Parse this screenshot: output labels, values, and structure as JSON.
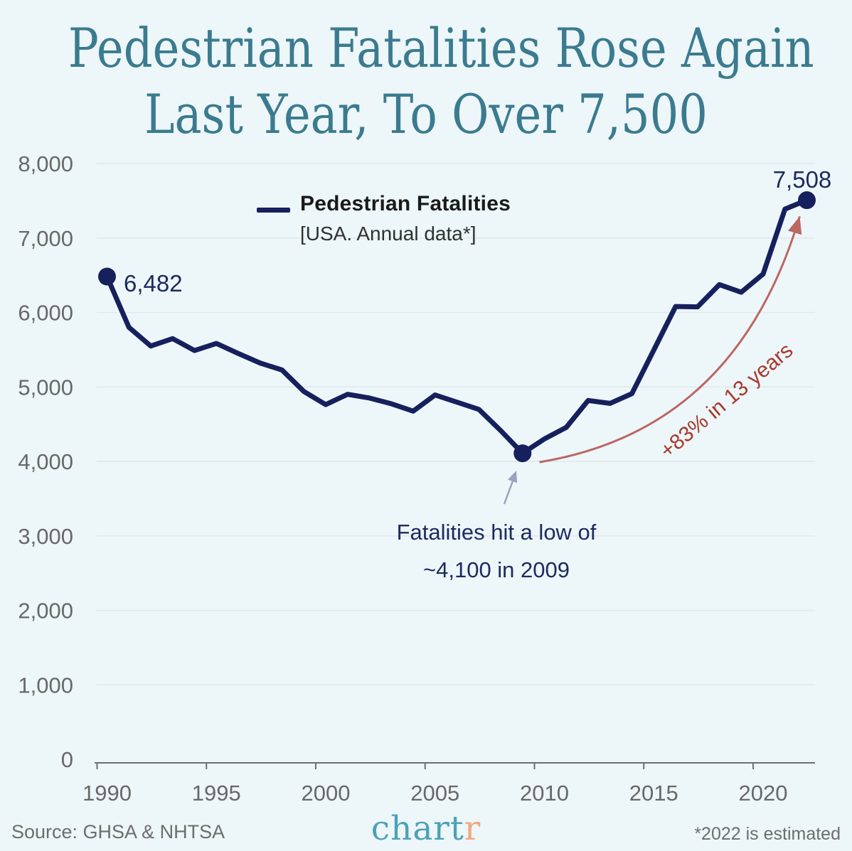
{
  "title": {
    "line1": "Pedestrian Fatalities Rose Again",
    "line2": "Last Year, To Over 7,500"
  },
  "legend": {
    "label": "Pedestrian Fatalities",
    "sublabel": "[USA. Annual data*]"
  },
  "annotations": {
    "low_note_line1": "Fatalities hit a low of",
    "low_note_line2": "~4,100 in 2009",
    "growth_note": "+83% in 13 years"
  },
  "footer": {
    "source": "Source: GHSA & NHTSA",
    "logo_main": "chart",
    "logo_accent": "r",
    "note": "*2022 is estimated"
  },
  "chart_data": {
    "type": "line",
    "title": "Pedestrian Fatalities Rose Again Last Year, To Over 7,500",
    "series_name": "Pedestrian Fatalities [USA. Annual data*]",
    "x": [
      1990,
      1991,
      1992,
      1993,
      1994,
      1995,
      1996,
      1997,
      1998,
      1999,
      2000,
      2001,
      2002,
      2003,
      2004,
      2005,
      2006,
      2007,
      2008,
      2009,
      2010,
      2011,
      2012,
      2013,
      2014,
      2015,
      2016,
      2017,
      2018,
      2019,
      2020,
      2021,
      2022
    ],
    "values": [
      6482,
      5801,
      5549,
      5649,
      5489,
      5584,
      5449,
      5321,
      5228,
      4939,
      4763,
      4901,
      4851,
      4774,
      4675,
      4892,
      4795,
      4699,
      4414,
      4109,
      4302,
      4457,
      4818,
      4779,
      4910,
      5494,
      6080,
      6075,
      6374,
      6272,
      6516,
      7388,
      7508
    ],
    "xlabel": "",
    "ylabel": "",
    "ylim": [
      0,
      8000
    ],
    "xlim": [
      1990,
      2022
    ],
    "grid": true,
    "legend_position": "top-center",
    "y_ticks": [
      {
        "value": 0,
        "label": "0"
      },
      {
        "value": 1000,
        "label": "1,000"
      },
      {
        "value": 2000,
        "label": "2,000"
      },
      {
        "value": 3000,
        "label": "3,000"
      },
      {
        "value": 4000,
        "label": "4,000"
      },
      {
        "value": 5000,
        "label": "5,000"
      },
      {
        "value": 6000,
        "label": "6,000"
      },
      {
        "value": 7000,
        "label": "7,000"
      },
      {
        "value": 8000,
        "label": "8,000"
      }
    ],
    "x_ticks": [
      {
        "value": 1990,
        "label": "1990"
      },
      {
        "value": 1995,
        "label": "1995"
      },
      {
        "value": 2000,
        "label": "2000"
      },
      {
        "value": 2005,
        "label": "2005"
      },
      {
        "value": 2010,
        "label": "2010"
      },
      {
        "value": 2015,
        "label": "2015"
      },
      {
        "value": 2020,
        "label": "2020"
      }
    ],
    "markers": [
      {
        "year": 1990,
        "value": 6482,
        "label": "6,482"
      },
      {
        "year": 2009,
        "value": 4109,
        "label": ""
      },
      {
        "year": 2022,
        "value": 7508,
        "label": "7,508"
      }
    ]
  },
  "colors": {
    "background": "#edf6f9",
    "title_teal": "#3b7b8f",
    "line_navy": "#16205c",
    "annotation_navy": "#1c2a5e",
    "gridline": "#dfe9ec",
    "axis_line": "#6f6f6f",
    "axis_label": "#686868",
    "red_text": "#a63a2d",
    "red_arrow": "#bb6763",
    "slate_arrow": "#9aa3bb",
    "footer_grey": "#6d6d6d",
    "logo_teal": "#4ba1b8",
    "logo_orange": "#f0a87f"
  }
}
